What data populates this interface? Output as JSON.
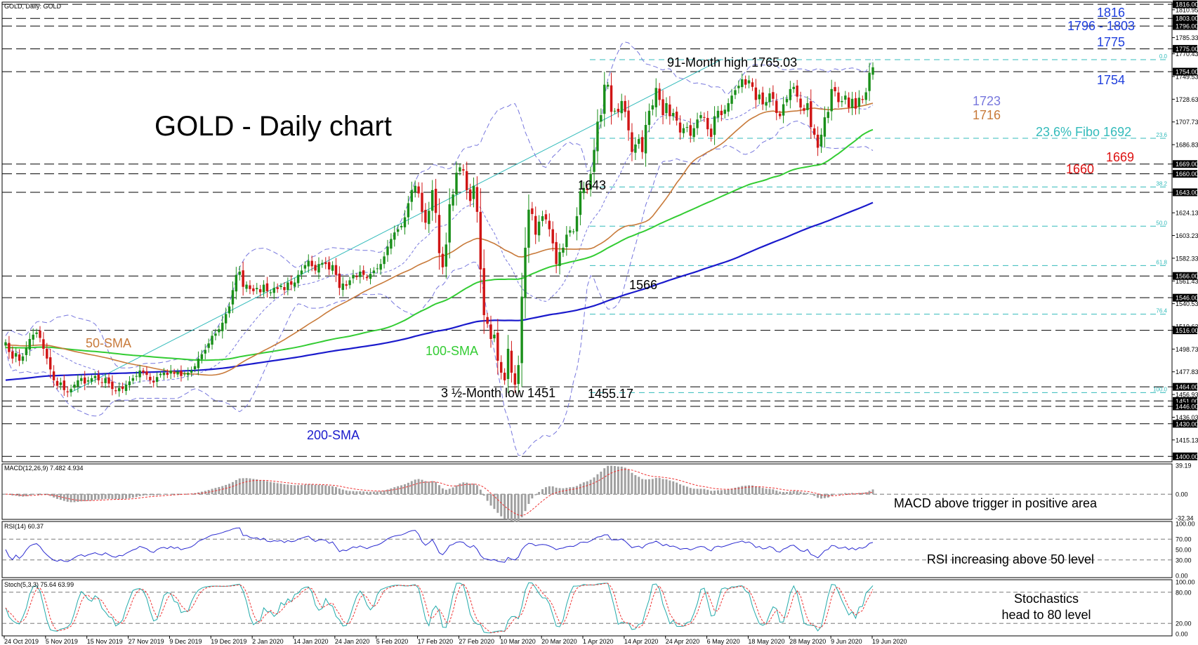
{
  "chart_data": {
    "type": "candlestick",
    "header": "GOLD, Daily:  GOLD",
    "title": "GOLD - Daily chart",
    "colors": {
      "bull": "#1a8f1a",
      "bear": "#d01515",
      "sma50": "#c87a3a",
      "sma100": "#33cc33",
      "sma200": "#1a1acc",
      "bollinger": "#7777dd",
      "fibo": "#33bbbb",
      "level_blue": "#1f3fdd",
      "level_red": "#dd1111",
      "macd_hist": "#a0a0a0",
      "signal": "#ee3333",
      "rsi": "#2a2ad0",
      "stoch_k": "#22aaaa",
      "stoch_d": "#ee3333"
    },
    "price_axis": {
      "ticks": [
        "1816.00",
        "1810.95",
        "1803.00",
        "1796.00",
        "1785.33",
        "1775.00",
        "1770.43",
        "1754.00",
        "1749.53",
        "1728.63",
        "1707.73",
        "1686.83",
        "1669.00",
        "1660.00",
        "1643.00",
        "1624.13",
        "1603.23",
        "1582.33",
        "1566.00",
        "1561.43",
        "1546.00",
        "1540.53",
        "1519.63",
        "1516.00",
        "1498.73",
        "1477.83",
        "1464.00",
        "1456.93",
        "1451.00",
        "1446.00",
        "1436.03",
        "1430.00",
        "1415.13",
        "1400.00"
      ],
      "highlighted": [
        "1816.00",
        "1803.00",
        "1796.00",
        "1775.00",
        "1754.00",
        "1669.00",
        "1660.00",
        "1643.00",
        "1566.00",
        "1546.00",
        "1516.00",
        "1464.00",
        "1451.00",
        "1446.00",
        "1430.00",
        "1400.00"
      ]
    },
    "dates": [
      "24 Oct 2019",
      "5 Nov 2019",
      "15 Nov 2019",
      "27 Nov 2019",
      "9 Dec 2019",
      "19 Dec 2019",
      "2 Jan 2020",
      "14 Jan 2020",
      "24 Jan 2020",
      "5 Feb 2020",
      "17 Feb 2020",
      "27 Feb 2020",
      "10 Mar 2020",
      "20 Mar 2020",
      "1 Apr 2020",
      "14 Apr 2020",
      "24 Apr 2020",
      "6 May 2020",
      "18 May 2020",
      "28 May 2020",
      "9 Jun 2020",
      "19 Jun 2020"
    ],
    "levels_blue": [
      "1816",
      "1796 - 1803",
      "1775",
      "1754"
    ],
    "sma_labels": [
      "1723",
      "1716"
    ],
    "levels_red": [
      "1669",
      "1660"
    ],
    "fibo_label": "23.6% Fibo 1692",
    "fibo_levels": [
      {
        "pct": "0.0",
        "price": 1765.03
      },
      {
        "pct": "23.6",
        "price": 1692.7
      },
      {
        "pct": "38.2",
        "price": 1647.9
      },
      {
        "pct": "50.0",
        "price": 1611.8
      },
      {
        "pct": "61.8",
        "price": 1575.6
      },
      {
        "pct": "76.4",
        "price": 1530.9
      },
      {
        "pct": "100.0",
        "price": 1458.7
      }
    ],
    "annotations": {
      "high": "91-Month high 1765.03",
      "low": "3 ½-Month low 1451",
      "low2": "1455.17",
      "l1643": "1643",
      "l1566": "1566",
      "sma50": "50-SMA",
      "sma100": "100-SMA",
      "sma200": "200-SMA"
    },
    "close": [
      1505,
      1496,
      1490,
      1495,
      1488,
      1492,
      1500,
      1508,
      1512,
      1514,
      1509,
      1499,
      1490,
      1480,
      1470,
      1465,
      1468,
      1461,
      1459,
      1462,
      1466,
      1470,
      1472,
      1467,
      1470,
      1472,
      1474,
      1470,
      1468,
      1472,
      1467,
      1462,
      1460,
      1463,
      1462,
      1466,
      1469,
      1472,
      1474,
      1479,
      1477,
      1475,
      1470,
      1468,
      1473,
      1476,
      1477,
      1475,
      1479,
      1476,
      1478,
      1474,
      1476,
      1477,
      1479,
      1483,
      1490,
      1494,
      1498,
      1504,
      1511,
      1513,
      1517,
      1523,
      1531,
      1538,
      1553,
      1567,
      1570,
      1556,
      1558,
      1554,
      1552,
      1555,
      1551,
      1558,
      1552,
      1551,
      1555,
      1554,
      1557,
      1553,
      1560,
      1558,
      1560,
      1567,
      1571,
      1576,
      1580,
      1575,
      1571,
      1577,
      1578,
      1577,
      1572,
      1576,
      1567,
      1555,
      1559,
      1557,
      1562,
      1567,
      1565,
      1570,
      1567,
      1564,
      1568,
      1571,
      1573,
      1577,
      1584,
      1593,
      1600,
      1606,
      1609,
      1612,
      1620,
      1633,
      1645,
      1649,
      1642,
      1625,
      1615,
      1626,
      1645,
      1624,
      1587,
      1574,
      1595,
      1632,
      1641,
      1661,
      1666,
      1663,
      1645,
      1635,
      1649,
      1625,
      1572,
      1530,
      1522,
      1508,
      1512,
      1488,
      1477,
      1470,
      1499,
      1477,
      1466,
      1484,
      1547,
      1592,
      1627,
      1623,
      1604,
      1616,
      1621,
      1618,
      1609,
      1596,
      1577,
      1588,
      1592,
      1604,
      1608,
      1607,
      1621,
      1644,
      1647,
      1645,
      1660,
      1682,
      1708,
      1714,
      1742,
      1742,
      1717,
      1718,
      1717,
      1727,
      1717,
      1700,
      1680,
      1687,
      1692,
      1680,
      1705,
      1718,
      1723,
      1739,
      1728,
      1714,
      1725,
      1713,
      1716,
      1709,
      1698,
      1702,
      1703,
      1695,
      1702,
      1710,
      1714,
      1712,
      1701,
      1694,
      1713,
      1718,
      1714,
      1719,
      1725,
      1732,
      1737,
      1741,
      1747,
      1742,
      1746,
      1740,
      1728,
      1733,
      1724,
      1726,
      1734,
      1729,
      1716,
      1713,
      1724,
      1729,
      1738,
      1740,
      1731,
      1721,
      1718,
      1725,
      1703,
      1696,
      1684,
      1696,
      1712,
      1717,
      1738,
      1736,
      1726,
      1727,
      1732,
      1721,
      1729,
      1720,
      1730,
      1728,
      1735,
      1753,
      1758
    ],
    "macd_label": "MACD(12,26,9) 7.482 4.934",
    "macd_ticks": [
      "39.19",
      "0.00",
      "-32.34"
    ],
    "macd_range": [
      -32.34,
      39.19
    ],
    "macd_note": "MACD above trigger in positive area",
    "rsi_label": "RSI(14) 60.37",
    "rsi_ticks": [
      "100.00",
      "70.00",
      "50.00",
      "30.00",
      "0.00"
    ],
    "rsi_note": "RSI increasing above 50 level",
    "stoch_label": "Stoch(5,3,3) 75.64 63.99",
    "stoch_ticks": [
      "100.00",
      "80.00",
      "20.00",
      "0.00"
    ],
    "stoch_note_1": "Stochastics",
    "stoch_note_2": "head to 80 level"
  }
}
